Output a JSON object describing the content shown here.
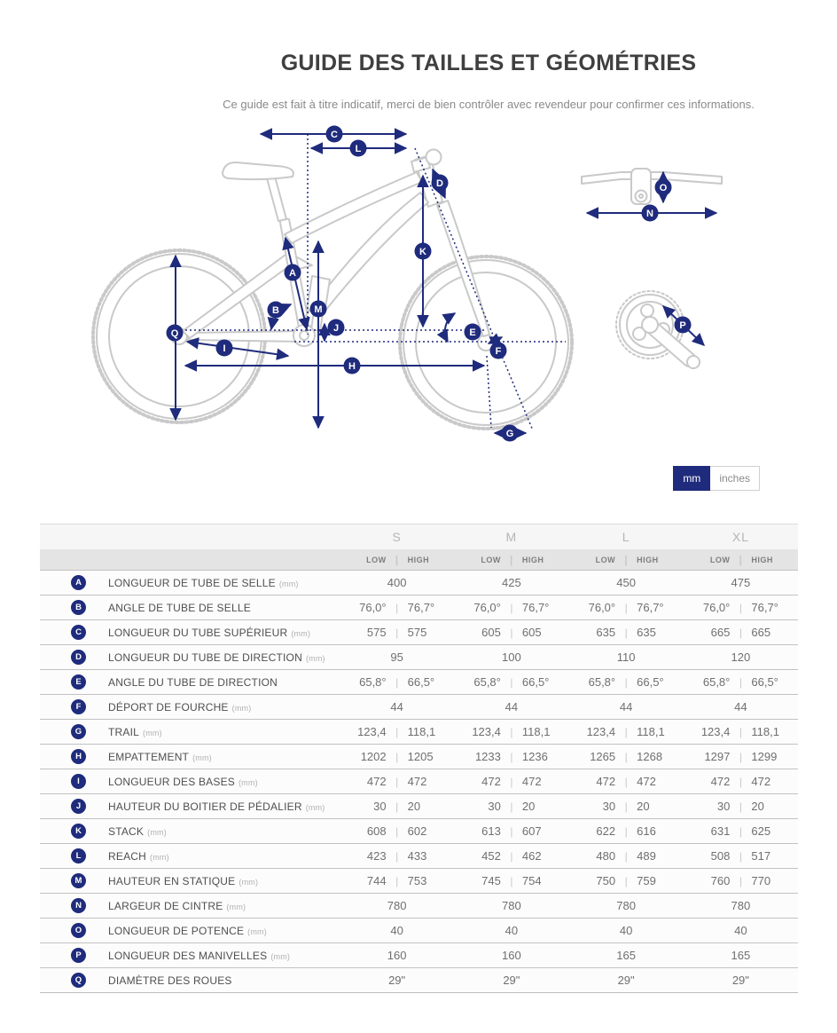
{
  "page": {
    "title": "GUIDE DES TAILLES ET GÉOMÉTRIES",
    "subtitle": "Ce guide est fait à titre indicatif, merci de bien contrôler avec revendeur pour confirmer ces informations."
  },
  "colors": {
    "accent": "#1f2b7c",
    "bike_outline": "#c9c9c9"
  },
  "unit_toggle": {
    "mm_label": "mm",
    "inches_label": "inches",
    "selected": "mm"
  },
  "diagram": {
    "badge_letters": [
      "A",
      "B",
      "C",
      "D",
      "E",
      "F",
      "G",
      "H",
      "I",
      "J",
      "K",
      "L",
      "M",
      "N",
      "O",
      "P",
      "Q"
    ]
  },
  "table": {
    "sizes": [
      "S",
      "M",
      "L",
      "XL"
    ],
    "sub_header": {
      "low": "LOW",
      "high": "HIGH"
    },
    "rows": [
      {
        "key": "A",
        "label": "LONGUEUR DE TUBE DE SELLE",
        "unit": "(mm)",
        "values": [
          "400",
          "425",
          "450",
          "475"
        ]
      },
      {
        "key": "B",
        "label": "ANGLE DE TUBE DE SELLE",
        "unit": "",
        "values": [
          [
            "76,0°",
            "76,7°"
          ],
          [
            "76,0°",
            "76,7°"
          ],
          [
            "76,0°",
            "76,7°"
          ],
          [
            "76,0°",
            "76,7°"
          ]
        ]
      },
      {
        "key": "C",
        "label": "LONGUEUR DU TUBE SUPÉRIEUR",
        "unit": "(mm)",
        "values": [
          [
            "575",
            "575"
          ],
          [
            "605",
            "605"
          ],
          [
            "635",
            "635"
          ],
          [
            "665",
            "665"
          ]
        ]
      },
      {
        "key": "D",
        "label": "LONGUEUR DU TUBE DE DIRECTION",
        "unit": "(mm)",
        "values": [
          "95",
          "100",
          "110",
          "120"
        ]
      },
      {
        "key": "E",
        "label": "ANGLE DU TUBE DE DIRECTION",
        "unit": "",
        "values": [
          [
            "65,8°",
            "66,5°"
          ],
          [
            "65,8°",
            "66,5°"
          ],
          [
            "65,8°",
            "66,5°"
          ],
          [
            "65,8°",
            "66,5°"
          ]
        ]
      },
      {
        "key": "F",
        "label": "DÉPORT DE FOURCHE",
        "unit": "(mm)",
        "values": [
          "44",
          "44",
          "44",
          "44"
        ]
      },
      {
        "key": "G",
        "label": "TRAIL",
        "unit": "(mm)",
        "values": [
          [
            "123,4",
            "118,1"
          ],
          [
            "123,4",
            "118,1"
          ],
          [
            "123,4",
            "118,1"
          ],
          [
            "123,4",
            "118,1"
          ]
        ]
      },
      {
        "key": "H",
        "label": "EMPATTEMENT",
        "unit": "(mm)",
        "values": [
          [
            "1202",
            "1205"
          ],
          [
            "1233",
            "1236"
          ],
          [
            "1265",
            "1268"
          ],
          [
            "1297",
            "1299"
          ]
        ]
      },
      {
        "key": "I",
        "label": "LONGUEUR DES BASES",
        "unit": "(mm)",
        "values": [
          [
            "472",
            "472"
          ],
          [
            "472",
            "472"
          ],
          [
            "472",
            "472"
          ],
          [
            "472",
            "472"
          ]
        ]
      },
      {
        "key": "J",
        "label": "HAUTEUR DU BOITIER DE PÉDALIER",
        "unit": "(mm)",
        "values": [
          [
            "30",
            "20"
          ],
          [
            "30",
            "20"
          ],
          [
            "30",
            "20"
          ],
          [
            "30",
            "20"
          ]
        ]
      },
      {
        "key": "K",
        "label": "STACK",
        "unit": "(mm)",
        "values": [
          [
            "608",
            "602"
          ],
          [
            "613",
            "607"
          ],
          [
            "622",
            "616"
          ],
          [
            "631",
            "625"
          ]
        ]
      },
      {
        "key": "L",
        "label": "REACH",
        "unit": "(mm)",
        "values": [
          [
            "423",
            "433"
          ],
          [
            "452",
            "462"
          ],
          [
            "480",
            "489"
          ],
          [
            "508",
            "517"
          ]
        ]
      },
      {
        "key": "M",
        "label": "HAUTEUR EN STATIQUE",
        "unit": "(mm)",
        "values": [
          [
            "744",
            "753"
          ],
          [
            "745",
            "754"
          ],
          [
            "750",
            "759"
          ],
          [
            "760",
            "770"
          ]
        ]
      },
      {
        "key": "N",
        "label": "LARGEUR DE CINTRE",
        "unit": "(mm)",
        "values": [
          "780",
          "780",
          "780",
          "780"
        ]
      },
      {
        "key": "O",
        "label": "LONGUEUR DE POTENCE",
        "unit": "(mm)",
        "values": [
          "40",
          "40",
          "40",
          "40"
        ]
      },
      {
        "key": "P",
        "label": "LONGUEUR DES MANIVELLES",
        "unit": "(mm)",
        "values": [
          "160",
          "160",
          "165",
          "165"
        ]
      },
      {
        "key": "Q",
        "label": "DIAMÈTRE DES ROUES",
        "unit": "",
        "values": [
          "29\"",
          "29\"",
          "29\"",
          "29\""
        ]
      }
    ]
  }
}
